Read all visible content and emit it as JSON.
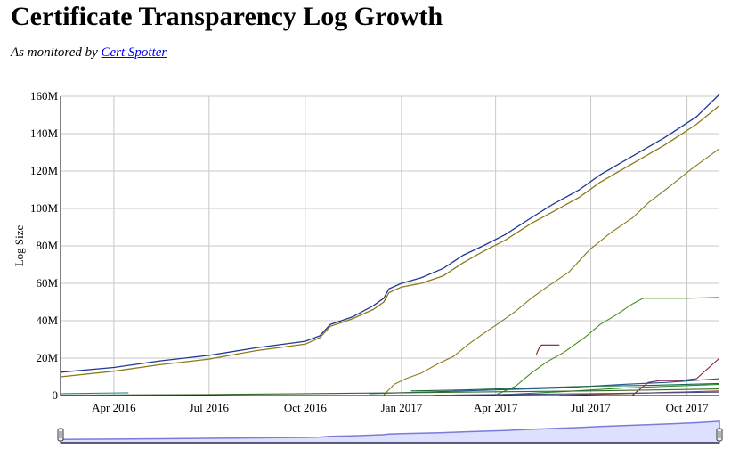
{
  "page": {
    "title": "Certificate Transparency Log Growth",
    "subtitle_prefix": "As monitored by ",
    "subtitle_link": "Cert Spotter"
  },
  "chart_data": {
    "type": "line",
    "ylabel": "Log Size",
    "ylim": [
      0,
      160
    ],
    "y_unit": "M",
    "yticks": [
      0,
      20,
      40,
      60,
      80,
      100,
      120,
      140,
      160
    ],
    "ytick_labels": [
      "0",
      "20M",
      "40M",
      "60M",
      "80M",
      "100M",
      "120M",
      "140M",
      "160M"
    ],
    "xlim": [
      "2016-02-10",
      "2017-11-01"
    ],
    "xticks": [
      "2016-04-01",
      "2016-07-01",
      "2016-10-01",
      "2017-01-01",
      "2017-04-01",
      "2017-07-01",
      "2017-10-01"
    ],
    "xtick_labels": [
      "Apr 2016",
      "Jul 2016",
      "Oct 2016",
      "Jan 2017",
      "Apr 2017",
      "Jul 2017",
      "Oct 2017"
    ],
    "grid": true,
    "legend": "none",
    "range_selector": true,
    "series": [
      {
        "color": "#1f3a93",
        "points": [
          [
            "2016-02-10",
            12.5
          ],
          [
            "2016-04-01",
            15
          ],
          [
            "2016-05-15",
            18.5
          ],
          [
            "2016-07-01",
            21.5
          ],
          [
            "2016-08-15",
            25.5
          ],
          [
            "2016-10-01",
            29
          ],
          [
            "2016-10-15",
            32
          ],
          [
            "2016-10-25",
            38
          ],
          [
            "2016-11-15",
            42
          ],
          [
            "2016-12-05",
            48
          ],
          [
            "2016-12-15",
            52
          ],
          [
            "2016-12-20",
            57
          ],
          [
            "2017-01-01",
            60
          ],
          [
            "2017-01-20",
            63
          ],
          [
            "2017-02-10",
            68
          ],
          [
            "2017-03-01",
            75
          ],
          [
            "2017-03-20",
            80
          ],
          [
            "2017-04-10",
            86
          ],
          [
            "2017-05-05",
            95
          ],
          [
            "2017-05-25",
            102
          ],
          [
            "2017-06-20",
            110
          ],
          [
            "2017-07-10",
            118
          ],
          [
            "2017-08-10",
            128
          ],
          [
            "2017-09-10",
            138
          ],
          [
            "2017-10-10",
            149
          ],
          [
            "2017-11-01",
            161
          ]
        ]
      },
      {
        "color": "#8b7a1a",
        "points": [
          [
            "2016-02-10",
            10
          ],
          [
            "2016-04-01",
            13
          ],
          [
            "2016-05-15",
            16.5
          ],
          [
            "2016-07-01",
            19.5
          ],
          [
            "2016-08-15",
            24
          ],
          [
            "2016-10-01",
            27.5
          ],
          [
            "2016-10-15",
            31
          ],
          [
            "2016-10-25",
            37
          ],
          [
            "2016-11-15",
            41
          ],
          [
            "2016-12-05",
            46
          ],
          [
            "2016-12-15",
            50
          ],
          [
            "2016-12-20",
            55
          ],
          [
            "2017-01-01",
            58
          ],
          [
            "2017-01-20",
            60
          ],
          [
            "2017-02-10",
            64
          ],
          [
            "2017-03-01",
            71
          ],
          [
            "2017-03-20",
            77
          ],
          [
            "2017-04-10",
            83
          ],
          [
            "2017-05-05",
            92
          ],
          [
            "2017-05-25",
            98
          ],
          [
            "2017-06-20",
            106
          ],
          [
            "2017-07-10",
            114
          ],
          [
            "2017-08-10",
            124
          ],
          [
            "2017-09-10",
            134
          ],
          [
            "2017-10-10",
            145
          ],
          [
            "2017-11-01",
            155
          ]
        ]
      },
      {
        "color": "#8b7a1a",
        "points": [
          [
            "2016-12-15",
            0.3
          ],
          [
            "2016-12-25",
            6
          ],
          [
            "2017-01-05",
            9
          ],
          [
            "2017-01-20",
            12
          ],
          [
            "2017-02-05",
            17
          ],
          [
            "2017-02-20",
            21
          ],
          [
            "2017-03-05",
            27
          ],
          [
            "2017-03-20",
            33
          ],
          [
            "2017-04-05",
            39
          ],
          [
            "2017-04-20",
            45
          ],
          [
            "2017-05-05",
            52
          ],
          [
            "2017-05-20",
            58
          ],
          [
            "2017-06-10",
            66
          ],
          [
            "2017-06-30",
            78
          ],
          [
            "2017-07-20",
            87
          ],
          [
            "2017-08-10",
            95
          ],
          [
            "2017-08-25",
            103
          ],
          [
            "2017-09-15",
            112
          ],
          [
            "2017-10-05",
            121
          ],
          [
            "2017-11-01",
            132
          ]
        ]
      },
      {
        "color": "#4a8a1a",
        "points": [
          [
            "2017-04-01",
            0.3
          ],
          [
            "2017-04-20",
            5
          ],
          [
            "2017-05-05",
            12
          ],
          [
            "2017-05-20",
            18
          ],
          [
            "2017-06-05",
            23
          ],
          [
            "2017-06-25",
            31
          ],
          [
            "2017-07-10",
            38
          ],
          [
            "2017-07-25",
            43
          ],
          [
            "2017-08-10",
            49
          ],
          [
            "2017-08-20",
            52
          ],
          [
            "2017-10-01",
            52
          ],
          [
            "2017-11-01",
            52.5
          ]
        ]
      },
      {
        "color": "#8b1a1a",
        "points": [
          [
            "2017-05-10",
            22
          ],
          [
            "2017-05-13",
            26
          ],
          [
            "2017-05-15",
            27
          ],
          [
            "2017-06-01",
            27
          ]
        ]
      },
      {
        "color": "#8b1a4a",
        "points": [
          [
            "2017-08-10",
            0.3
          ],
          [
            "2017-08-25",
            7
          ],
          [
            "2017-09-05",
            8
          ],
          [
            "2017-09-25",
            8
          ],
          [
            "2017-10-10",
            9
          ],
          [
            "2017-11-01",
            20
          ]
        ]
      },
      {
        "color": "#1a5a8b",
        "points": [
          [
            "2016-12-01",
            1
          ],
          [
            "2017-02-01",
            2
          ],
          [
            "2017-04-01",
            3
          ],
          [
            "2017-06-01",
            4
          ],
          [
            "2017-08-01",
            6
          ],
          [
            "2017-09-10",
            7
          ],
          [
            "2017-11-01",
            9
          ]
        ]
      },
      {
        "color": "#1a6a4a",
        "points": [
          [
            "2017-01-10",
            2.5
          ],
          [
            "2017-03-01",
            3
          ],
          [
            "2017-05-01",
            4
          ],
          [
            "2017-07-01",
            5
          ],
          [
            "2017-09-01",
            5.5
          ],
          [
            "2017-11-01",
            6.5
          ]
        ]
      },
      {
        "color": "#2a8a2a",
        "points": [
          [
            "2017-04-01",
            0.3
          ],
          [
            "2017-06-01",
            2
          ],
          [
            "2017-08-01",
            4
          ],
          [
            "2017-09-15",
            5
          ],
          [
            "2017-11-01",
            6
          ]
        ]
      },
      {
        "color": "#1a8b8b",
        "points": [
          [
            "2016-02-10",
            1
          ],
          [
            "2016-04-15",
            1.5
          ]
        ]
      },
      {
        "color": "#3a6a2a",
        "points": [
          [
            "2016-02-10",
            0.2
          ],
          [
            "2016-07-01",
            0.5
          ],
          [
            "2016-10-01",
            1
          ],
          [
            "2017-01-01",
            1.5
          ],
          [
            "2017-04-01",
            2
          ],
          [
            "2017-07-01",
            2.5
          ],
          [
            "2017-11-01",
            3.5
          ]
        ]
      },
      {
        "color": "#8b4a1a",
        "points": [
          [
            "2017-06-01",
            0.2
          ],
          [
            "2017-08-01",
            1
          ],
          [
            "2017-11-01",
            2.5
          ]
        ]
      },
      {
        "color": "#4a4a8b",
        "points": [
          [
            "2017-02-01",
            0.2
          ],
          [
            "2017-07-01",
            1
          ],
          [
            "2017-11-01",
            1.8
          ]
        ]
      }
    ]
  }
}
